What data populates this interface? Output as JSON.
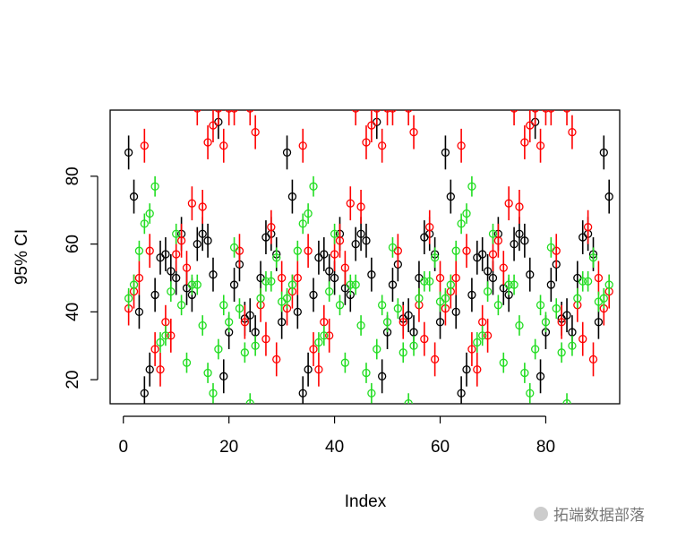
{
  "chart_data": {
    "type": "errorbar",
    "xlabel": "Index",
    "ylabel": "95% CI",
    "x": [
      1,
      2,
      3,
      4,
      5,
      6,
      7,
      8,
      9,
      10,
      11,
      12,
      13,
      14,
      15,
      16,
      17,
      18,
      19,
      20,
      21,
      22,
      23,
      24,
      25,
      26,
      27,
      28,
      29,
      30,
      31,
      32,
      33,
      34,
      35,
      36,
      37,
      38,
      39,
      40,
      41,
      42,
      43,
      44,
      45,
      46,
      47,
      48,
      49,
      50,
      51,
      52,
      53,
      54,
      55,
      56,
      57,
      58,
      59,
      60,
      61,
      62,
      63,
      64,
      65,
      66,
      67,
      68,
      69,
      70,
      71,
      72,
      73,
      74,
      75,
      76,
      77,
      78,
      79,
      80,
      81,
      82,
      83,
      84,
      85,
      86,
      87,
      88,
      89,
      90,
      91,
      92
    ],
    "series": [
      {
        "color": "#000000",
        "error": 5,
        "values": [
          87,
          74,
          40,
          16,
          23,
          45,
          56,
          57,
          52,
          50,
          63,
          47,
          45,
          60,
          63,
          61,
          51,
          96,
          21,
          34,
          48,
          54,
          38,
          39,
          34,
          50,
          62,
          63,
          57,
          37,
          87,
          74,
          40,
          16,
          23,
          45,
          56,
          57,
          52,
          50,
          63,
          47,
          45,
          60,
          63,
          61,
          51,
          96,
          21,
          34,
          48,
          54,
          38,
          39,
          34,
          50,
          62,
          63,
          57,
          37,
          87,
          74,
          40,
          16,
          23,
          45,
          56,
          57,
          52,
          50,
          63,
          47,
          45,
          60,
          63,
          61,
          51,
          96,
          21,
          34,
          48,
          54,
          38,
          39,
          34,
          50,
          62,
          63,
          57,
          37,
          87,
          74
        ]
      },
      {
        "color": "#ff0000",
        "error": 5,
        "values": [
          41,
          46,
          50,
          89,
          58,
          29,
          23,
          37,
          33,
          57,
          61,
          53,
          72,
          100,
          71,
          90,
          95,
          100,
          89,
          100,
          100,
          58,
          37,
          100,
          93,
          42,
          32,
          65,
          26,
          50,
          41,
          46,
          50,
          89,
          58,
          29,
          23,
          37,
          33,
          57,
          61,
          53,
          72,
          100,
          71,
          90,
          95,
          100,
          89,
          100,
          100,
          58,
          37,
          100,
          93,
          42,
          32,
          65,
          26,
          50,
          41,
          46,
          50,
          89,
          58,
          29,
          23,
          37,
          33,
          57,
          61,
          53,
          72,
          100,
          71,
          90,
          95,
          100,
          89,
          100,
          100,
          58,
          37,
          100,
          93,
          42,
          32,
          65,
          26,
          50,
          41,
          46
        ]
      },
      {
        "color": "#22dd22",
        "error": 3,
        "values": [
          44,
          48,
          58,
          66,
          69,
          77,
          31,
          33,
          46,
          63,
          42,
          25,
          48,
          48,
          36,
          22,
          16,
          29,
          42,
          37,
          59,
          41,
          28,
          13,
          30,
          44,
          49,
          49,
          56,
          43,
          44,
          48,
          58,
          66,
          69,
          77,
          31,
          33,
          46,
          63,
          42,
          25,
          48,
          48,
          36,
          22,
          16,
          29,
          42,
          37,
          59,
          41,
          28,
          13,
          30,
          44,
          49,
          49,
          56,
          43,
          44,
          48,
          58,
          66,
          69,
          77,
          31,
          33,
          46,
          63,
          42,
          25,
          48,
          48,
          36,
          22,
          16,
          29,
          42,
          37,
          59,
          41,
          28,
          13,
          30,
          44,
          49,
          49,
          56,
          43,
          44,
          48
        ]
      }
    ],
    "xlim": [
      -2.5,
      94
    ],
    "ylim": [
      12.9,
      99.5
    ],
    "xticks": [
      0,
      20,
      40,
      60,
      80
    ],
    "yticks": [
      20,
      40,
      60,
      80
    ],
    "watermark": "拓端数据部落"
  }
}
